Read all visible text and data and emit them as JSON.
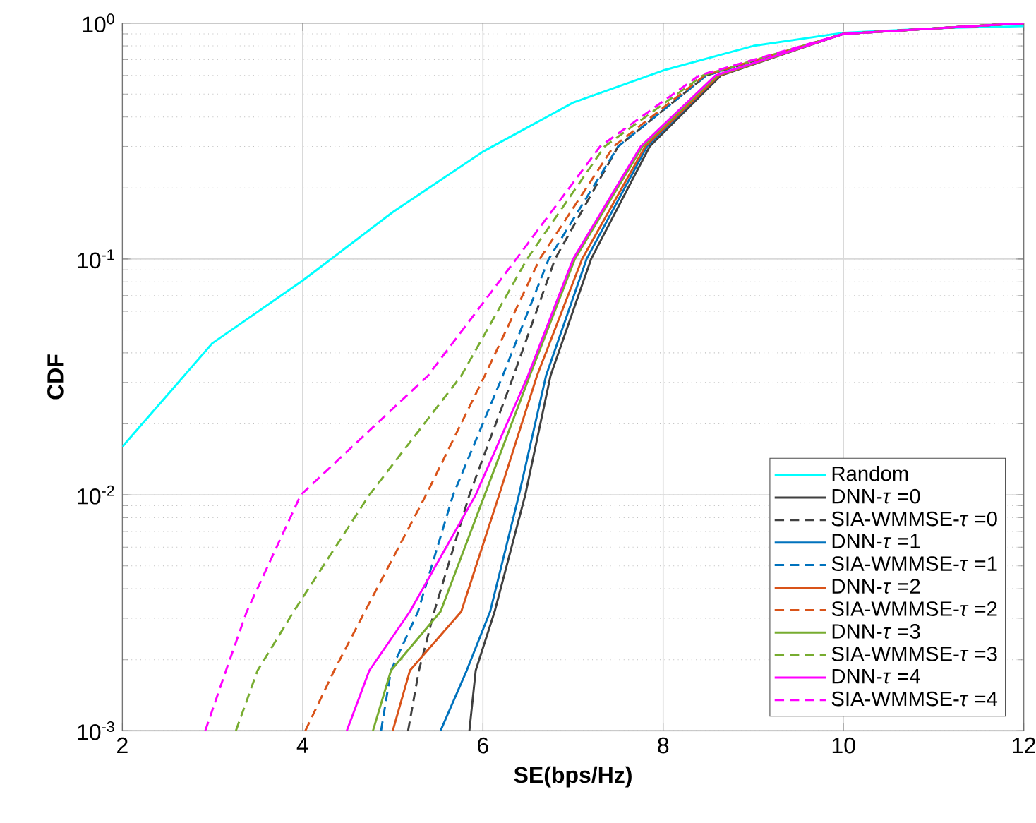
{
  "chart_data": {
    "type": "line",
    "xlabel": "SE(bps/Hz)",
    "ylabel": "CDF",
    "log": "y",
    "grid": true,
    "legend": "bottom right",
    "marker": "none",
    "xlim": [
      2,
      12
    ],
    "xticks": [
      2,
      4,
      6,
      8,
      10,
      12
    ],
    "ylim": [
      0.001,
      1
    ],
    "yticks": [
      {
        "value": 0.001,
        "label": "10$^{-3}$"
      },
      {
        "value": 0.01,
        "label": "10$^{-2}$"
      },
      {
        "value": 0.1,
        "label": "10$^{-1}$"
      },
      {
        "value": 1,
        "label": "10$^{0}$"
      }
    ],
    "series": [
      {
        "name": "Random",
        "color": "#00ffff",
        "line_style": "solid",
        "x": [
          2,
          3,
          4,
          5,
          6,
          7,
          8,
          9,
          10,
          11,
          12
        ],
        "values": [
          0.016,
          0.044,
          0.081,
          0.158,
          0.285,
          0.46,
          0.63,
          0.8,
          0.91,
          0.95,
          0.97
        ]
      },
      {
        "name": "DNN-*τ* =0",
        "color": "#404040",
        "line_style": "solid",
        "x": [
          5.85,
          5.92,
          6.13,
          6.47,
          6.75,
          7.2,
          7.85,
          8.64,
          10.0,
          12
        ],
        "values": [
          0.001,
          0.0018,
          0.0032,
          0.01,
          0.032,
          0.1,
          0.3,
          0.6,
          0.9,
          1.0
        ]
      },
      {
        "name": "SIA-WMMSE-*τ* =0",
        "color": "#404040",
        "line_style": "dashed",
        "x": [
          5.17,
          5.29,
          5.46,
          5.85,
          6.34,
          6.8,
          7.5,
          8.48,
          10.0,
          12
        ],
        "values": [
          0.001,
          0.0018,
          0.0032,
          0.01,
          0.032,
          0.1,
          0.3,
          0.6,
          0.9,
          1.0
        ]
      },
      {
        "name": "DNN-*τ* =1",
        "color": "#0072bd",
        "line_style": "solid",
        "x": [
          5.53,
          5.82,
          6.08,
          6.4,
          6.7,
          7.15,
          7.82,
          8.62,
          10.0,
          12
        ],
        "values": [
          0.001,
          0.0018,
          0.0032,
          0.01,
          0.032,
          0.1,
          0.3,
          0.6,
          0.9,
          1.0
        ]
      },
      {
        "name": "SIA-WMMSE-*τ* =1",
        "color": "#0072bd",
        "line_style": "dashed",
        "x": [
          4.87,
          4.98,
          5.28,
          5.67,
          6.22,
          6.73,
          7.5,
          8.48,
          10.0,
          12
        ],
        "values": [
          0.001,
          0.0018,
          0.0032,
          0.01,
          0.032,
          0.1,
          0.3,
          0.6,
          0.9,
          1.0
        ]
      },
      {
        "name": "DNN-*τ* =2",
        "color": "#d95319",
        "line_style": "solid",
        "x": [
          5.0,
          5.19,
          5.76,
          6.18,
          6.6,
          7.1,
          7.8,
          8.62,
          10.0,
          12
        ],
        "values": [
          0.001,
          0.0018,
          0.0032,
          0.01,
          0.032,
          0.1,
          0.3,
          0.6,
          0.9,
          1.0
        ]
      },
      {
        "name": "SIA-WMMSE-*τ* =2",
        "color": "#d95319",
        "line_style": "dashed",
        "x": [
          4.03,
          4.35,
          4.69,
          5.37,
          6.02,
          6.63,
          7.45,
          8.46,
          10.0,
          12
        ],
        "values": [
          0.001,
          0.0018,
          0.0032,
          0.01,
          0.032,
          0.1,
          0.3,
          0.6,
          0.9,
          1.0
        ]
      },
      {
        "name": "DNN-*τ* =3",
        "color": "#77ac30",
        "line_style": "solid",
        "x": [
          4.78,
          4.98,
          5.53,
          6.02,
          6.52,
          7.02,
          7.77,
          8.6,
          10.0,
          12
        ],
        "values": [
          0.001,
          0.0018,
          0.0032,
          0.01,
          0.032,
          0.1,
          0.3,
          0.6,
          0.9,
          1.0
        ]
      },
      {
        "name": "SIA-WMMSE-*τ* =3",
        "color": "#77ac30",
        "line_style": "dashed",
        "x": [
          3.26,
          3.5,
          3.9,
          4.74,
          5.76,
          6.49,
          7.35,
          8.44,
          10.0,
          12
        ],
        "values": [
          0.001,
          0.0018,
          0.0032,
          0.01,
          0.032,
          0.1,
          0.3,
          0.6,
          0.9,
          1.0
        ]
      },
      {
        "name": "DNN-*τ* =4",
        "color": "#ff00ff",
        "line_style": "solid",
        "x": [
          4.49,
          4.74,
          5.19,
          5.92,
          6.5,
          7.0,
          7.75,
          8.58,
          10.0,
          12
        ],
        "values": [
          0.001,
          0.0018,
          0.0032,
          0.01,
          0.032,
          0.1,
          0.3,
          0.6,
          0.9,
          1.0
        ]
      },
      {
        "name": "SIA-WMMSE-*τ* =4",
        "color": "#ff00ff",
        "line_style": "dashed",
        "x": [
          2.92,
          3.15,
          3.38,
          3.98,
          5.39,
          6.37,
          7.3,
          8.4,
          10.0,
          12
        ],
        "values": [
          0.001,
          0.0018,
          0.0032,
          0.01,
          0.032,
          0.1,
          0.3,
          0.6,
          0.9,
          1.0
        ]
      }
    ]
  }
}
